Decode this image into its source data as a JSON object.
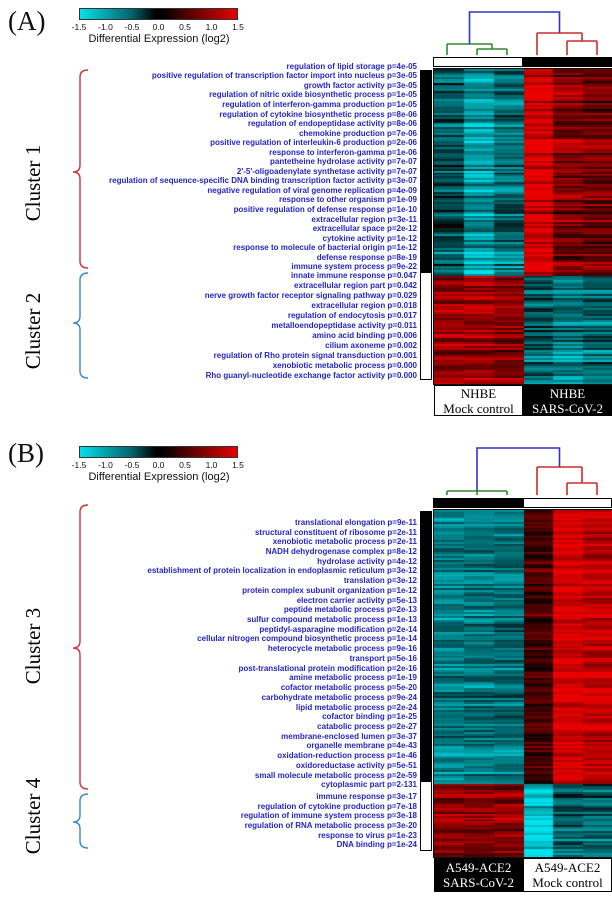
{
  "colors": {
    "go_term_text": "#2525c5",
    "heat_low": "#00e1eb",
    "heat_mid": "#000000",
    "heat_high": "#e60000"
  },
  "chart_data": [
    {
      "type": "heatmap",
      "panel_label": "(A)",
      "colorbar": {
        "label": "Differential Expression (log2)",
        "ticks": [
          -1.5,
          -1.0,
          -0.5,
          0.0,
          0.5,
          1.0,
          1.5
        ],
        "range": [
          -1.5,
          1.5
        ],
        "colors": {
          "low": "#00e1eb",
          "mid": "#000000",
          "high": "#e60000"
        }
      },
      "dendrogram": {
        "root_color": "#3133cb",
        "left_cluster_color": "#2e8b2e",
        "right_cluster_color": "#cf2b2b"
      },
      "column_groups": [
        {
          "line1": "NHBE",
          "line2": "Mock control",
          "samples": 3,
          "box_style": "light"
        },
        {
          "line1": "NHBE",
          "line2": "SARS-CoV-2",
          "samples": 3,
          "box_style": "dark"
        }
      ],
      "clusters": [
        {
          "name": "Cluster 1",
          "brace_color": "#cc3333",
          "sidebar_color": "#000000",
          "approx_col_log2": [
            -0.6,
            -1.1,
            -0.75,
            1.4,
            0.8,
            0.7
          ],
          "go_terms": [
            "regulation of lipid storage p=4e-05",
            "positive regulation of transcription factor import into nucleus p=3e-05",
            "growth factor activity p=3e-05",
            "regulation of nitric oxide biosynthetic process p=1e-05",
            "regulation of interferon-gamma production p=1e-05",
            "regulation of cytokine biosynthetic process p=8e-06",
            "regulation of endopeptidase activity p=8e-06",
            "chemokine production p=7e-06",
            "positive regulation of interleukin-6 production p=2e-06",
            "response to interferon-gamma p=1e-06",
            "pantetheine hydrolase activity p=7e-07",
            "2'-5'-oligoadenylate synthetase activity p=7e-07",
            "regulation of sequence-specific DNA binding transcription factor activity p=3e-07",
            "negative regulation of viral genome replication p=4e-09",
            "response to other organism p=1e-09",
            "positive regulation of defense response p=1e-10",
            "extracellular region p=3e-11",
            "extracellular space p=2e-12",
            "cytokine activity p=1e-12",
            "response to molecule of bacterial origin p=1e-12",
            "defense response p=8e-19",
            "immune system process p=9e-22"
          ]
        },
        {
          "name": "Cluster 2",
          "brace_color": "#3b87c8",
          "sidebar_color": "#ffffff",
          "approx_col_log2": [
            0.95,
            1.0,
            0.85,
            -0.6,
            -0.8,
            -0.7
          ],
          "go_terms": [
            "innate immune response p=0.047",
            "extracellular region part p=0.042",
            "nerve growth factor receptor signaling pathway p=0.029",
            "extracellular region p=0.018",
            "regulation of endocytosis p=0.017",
            "metalloendopeptidase activity p=0.011",
            "amino acid binding p=0.006",
            "cilium axoneme p=0.002",
            "regulation of Rho protein signal transduction p=0.001",
            "xenobiotic metabolic process p=0.000",
            "Rho guanyl-nucleotide exchange factor activity p=0.000"
          ]
        }
      ]
    },
    {
      "type": "heatmap",
      "panel_label": "(B)",
      "colorbar": {
        "label": "Differential Expression (log2)",
        "ticks": [
          -1.5,
          -1.0,
          -0.5,
          0.0,
          0.5,
          1.0,
          1.5
        ],
        "range": [
          -1.5,
          1.5
        ],
        "colors": {
          "low": "#00e1eb",
          "mid": "#000000",
          "high": "#e60000"
        }
      },
      "dendrogram": {
        "root_color": "#3133cb",
        "left_cluster_color": "#2e8b2e",
        "right_cluster_color": "#cf2b2b"
      },
      "column_groups": [
        {
          "line1": "A549-ACE2",
          "line2": "SARS-CoV-2",
          "samples": 3,
          "box_style": "dark"
        },
        {
          "line1": "A549-ACE2",
          "line2": "Mock control",
          "samples": 3,
          "box_style": "light"
        }
      ],
      "clusters": [
        {
          "name": "Cluster 3",
          "brace_color": "#cc3333",
          "sidebar_color": "#000000",
          "approx_col_log2": [
            -0.85,
            -0.8,
            -0.75,
            0.5,
            1.4,
            1.25
          ],
          "go_terms": [
            "translational elongation p=9e-11",
            "structural constituent of ribosome p=2e-11",
            "xenobiotic metabolic process p=2e-11",
            "NADH dehydrogenase complex p=8e-12",
            "hydrolase activity p=4e-12",
            "establishment of protein localization in endoplasmic reticulum p=3e-12",
            "translation p=3e-12",
            "protein complex subunit organization p=1e-12",
            "electron carrier activity p=5e-13",
            "peptide metabolic process p=2e-13",
            "sulfur compound metabolic process p=1e-13",
            "peptidyl-asparagine modification p=2e-14",
            "cellular nitrogen compound biosynthetic process p=1e-14",
            "heterocycle metabolic process p=9e-16",
            "transport p=5e-16",
            "post-translational protein modification p=2e-16",
            "amine metabolic process p=1e-19",
            "cofactor metabolic process p=5e-20",
            "carbohydrate metabolic process p=9e-24",
            "lipid metabolic process p=2e-24",
            "cofactor binding p=1e-25",
            "catabolic process p=2e-27",
            "membrane-enclosed lumen p=3e-37",
            "organelle membrane p=4e-43",
            "oxidation-reduction process p=1e-46",
            "oxidoreductase activity p=5e-51",
            "small molecule metabolic process p=2e-59",
            "cytoplasmic part p=2-131"
          ]
        },
        {
          "name": "Cluster 4",
          "brace_color": "#3b87c8",
          "sidebar_color": "#ffffff",
          "approx_col_log2": [
            1.0,
            0.9,
            0.95,
            -1.35,
            -0.6,
            -0.65
          ],
          "go_terms": [
            "immune response p=3e-17",
            "regulation of cytokine production p=7e-18",
            "regulation of immune system process p=3e-18",
            "regulation of RNA metabolic process p=3e-20",
            "response to virus p=1e-23",
            "DNA binding p=1e-24"
          ]
        }
      ]
    }
  ]
}
